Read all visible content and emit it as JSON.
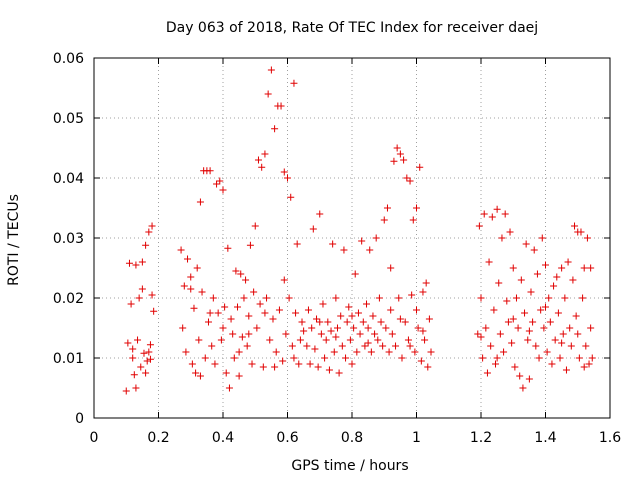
{
  "chart_data": {
    "type": "scatter",
    "title": "Day 063 of 2018, Rate Of TEC Index for receiver daej",
    "xlabel": "GPS time / hours",
    "ylabel": "ROTI / TECUs",
    "xlim": [
      0,
      1.6
    ],
    "ylim": [
      0,
      0.06
    ],
    "xticks": [
      "0",
      "0.2",
      "0.4",
      "0.6",
      "0.8",
      "1",
      "1.2",
      "1.4",
      "1.6"
    ],
    "yticks": [
      "0",
      "0.01",
      "0.02",
      "0.03",
      "0.04",
      "0.05",
      "0.06"
    ],
    "xtick_values": [
      0,
      0.2,
      0.4,
      0.6,
      0.8,
      1.0,
      1.2,
      1.4,
      1.6
    ],
    "ytick_values": [
      0,
      0.01,
      0.02,
      0.03,
      0.04,
      0.05,
      0.06
    ],
    "grid": true,
    "marker": "+",
    "color": "#e00000",
    "series": [
      {
        "name": "ROTI",
        "points": [
          [
            0.1,
            0.0045
          ],
          [
            0.105,
            0.0125
          ],
          [
            0.11,
            0.0258
          ],
          [
            0.115,
            0.019
          ],
          [
            0.12,
            0.01
          ],
          [
            0.125,
            0.0072
          ],
          [
            0.13,
            0.0255
          ],
          [
            0.135,
            0.013
          ],
          [
            0.14,
            0.02
          ],
          [
            0.145,
            0.0085
          ],
          [
            0.15,
            0.026
          ],
          [
            0.155,
            0.0108
          ],
          [
            0.16,
            0.0288
          ],
          [
            0.165,
            0.0095
          ],
          [
            0.17,
            0.031
          ],
          [
            0.175,
            0.0122
          ],
          [
            0.18,
            0.032
          ],
          [
            0.185,
            0.0178
          ],
          [
            0.13,
            0.005
          ],
          [
            0.15,
            0.0215
          ],
          [
            0.16,
            0.0075
          ],
          [
            0.175,
            0.0098
          ],
          [
            0.18,
            0.0205
          ],
          [
            0.12,
            0.0115
          ],
          [
            0.17,
            0.011
          ],
          [
            0.27,
            0.028
          ],
          [
            0.275,
            0.015
          ],
          [
            0.28,
            0.022
          ],
          [
            0.285,
            0.011
          ],
          [
            0.29,
            0.0265
          ],
          [
            0.3,
            0.0215
          ],
          [
            0.305,
            0.009
          ],
          [
            0.31,
            0.0183
          ],
          [
            0.315,
            0.0075
          ],
          [
            0.32,
            0.025
          ],
          [
            0.325,
            0.013
          ],
          [
            0.33,
            0.036
          ],
          [
            0.335,
            0.021
          ],
          [
            0.34,
            0.0412
          ],
          [
            0.345,
            0.01
          ],
          [
            0.35,
            0.0412
          ],
          [
            0.355,
            0.016
          ],
          [
            0.36,
            0.0412
          ],
          [
            0.365,
            0.012
          ],
          [
            0.37,
            0.02
          ],
          [
            0.375,
            0.009
          ],
          [
            0.38,
            0.039
          ],
          [
            0.385,
            0.0175
          ],
          [
            0.39,
            0.0395
          ],
          [
            0.395,
            0.013
          ],
          [
            0.4,
            0.038
          ],
          [
            0.405,
            0.0185
          ],
          [
            0.41,
            0.0075
          ],
          [
            0.415,
            0.0283
          ],
          [
            0.42,
            0.005
          ],
          [
            0.425,
            0.0165
          ],
          [
            0.43,
            0.014
          ],
          [
            0.435,
            0.01
          ],
          [
            0.44,
            0.0245
          ],
          [
            0.445,
            0.0185
          ],
          [
            0.45,
            0.007
          ],
          [
            0.455,
            0.024
          ],
          [
            0.46,
            0.0135
          ],
          [
            0.465,
            0.02
          ],
          [
            0.47,
            0.023
          ],
          [
            0.475,
            0.012
          ],
          [
            0.48,
            0.017
          ],
          [
            0.485,
            0.0288
          ],
          [
            0.49,
            0.009
          ],
          [
            0.495,
            0.021
          ],
          [
            0.3,
            0.0235
          ],
          [
            0.33,
            0.007
          ],
          [
            0.36,
            0.0175
          ],
          [
            0.4,
            0.015
          ],
          [
            0.45,
            0.011
          ],
          [
            0.48,
            0.014
          ],
          [
            0.5,
            0.032
          ],
          [
            0.505,
            0.015
          ],
          [
            0.51,
            0.043
          ],
          [
            0.515,
            0.019
          ],
          [
            0.52,
            0.0418
          ],
          [
            0.525,
            0.0085
          ],
          [
            0.53,
            0.044
          ],
          [
            0.535,
            0.02
          ],
          [
            0.54,
            0.054
          ],
          [
            0.545,
            0.013
          ],
          [
            0.55,
            0.058
          ],
          [
            0.555,
            0.0165
          ],
          [
            0.56,
            0.0482
          ],
          [
            0.565,
            0.011
          ],
          [
            0.57,
            0.052
          ],
          [
            0.575,
            0.018
          ],
          [
            0.58,
            0.052
          ],
          [
            0.585,
            0.0095
          ],
          [
            0.59,
            0.041
          ],
          [
            0.595,
            0.014
          ],
          [
            0.6,
            0.04
          ],
          [
            0.605,
            0.02
          ],
          [
            0.61,
            0.0368
          ],
          [
            0.615,
            0.012
          ],
          [
            0.62,
            0.0558
          ],
          [
            0.625,
            0.0175
          ],
          [
            0.63,
            0.029
          ],
          [
            0.635,
            0.009
          ],
          [
            0.64,
            0.013
          ],
          [
            0.645,
            0.016
          ],
          [
            0.53,
            0.0175
          ],
          [
            0.56,
            0.0085
          ],
          [
            0.59,
            0.023
          ],
          [
            0.62,
            0.01
          ],
          [
            0.65,
            0.0145
          ],
          [
            0.66,
            0.012
          ],
          [
            0.665,
            0.018
          ],
          [
            0.67,
            0.009
          ],
          [
            0.675,
            0.015
          ],
          [
            0.68,
            0.0315
          ],
          [
            0.685,
            0.0115
          ],
          [
            0.69,
            0.0165
          ],
          [
            0.695,
            0.0085
          ],
          [
            0.7,
            0.034
          ],
          [
            0.705,
            0.014
          ],
          [
            0.71,
            0.019
          ],
          [
            0.715,
            0.01
          ],
          [
            0.72,
            0.013
          ],
          [
            0.725,
            0.016
          ],
          [
            0.73,
            0.008
          ],
          [
            0.735,
            0.0145
          ],
          [
            0.74,
            0.029
          ],
          [
            0.745,
            0.011
          ],
          [
            0.75,
            0.02
          ],
          [
            0.755,
            0.015
          ],
          [
            0.76,
            0.0075
          ],
          [
            0.765,
            0.017
          ],
          [
            0.77,
            0.012
          ],
          [
            0.775,
            0.028
          ],
          [
            0.78,
            0.01
          ],
          [
            0.785,
            0.016
          ],
          [
            0.79,
            0.0185
          ],
          [
            0.795,
            0.013
          ],
          [
            0.8,
            0.009
          ],
          [
            0.805,
            0.015
          ],
          [
            0.81,
            0.024
          ],
          [
            0.815,
            0.011
          ],
          [
            0.82,
            0.0175
          ],
          [
            0.825,
            0.014
          ],
          [
            0.83,
            0.0295
          ],
          [
            0.835,
            0.016
          ],
          [
            0.84,
            0.012
          ],
          [
            0.845,
            0.019
          ],
          [
            0.85,
            0.015
          ],
          [
            0.855,
            0.028
          ],
          [
            0.86,
            0.011
          ],
          [
            0.865,
            0.017
          ],
          [
            0.87,
            0.014
          ],
          [
            0.875,
            0.03
          ],
          [
            0.88,
            0.013
          ],
          [
            0.885,
            0.02
          ],
          [
            0.89,
            0.016
          ],
          [
            0.895,
            0.012
          ],
          [
            0.7,
            0.016
          ],
          [
            0.75,
            0.0135
          ],
          [
            0.8,
            0.017
          ],
          [
            0.85,
            0.0125
          ],
          [
            0.9,
            0.033
          ],
          [
            0.905,
            0.015
          ],
          [
            0.91,
            0.035
          ],
          [
            0.915,
            0.011
          ],
          [
            0.92,
            0.018
          ],
          [
            0.925,
            0.014
          ],
          [
            0.93,
            0.0428
          ],
          [
            0.935,
            0.012
          ],
          [
            0.94,
            0.045
          ],
          [
            0.945,
            0.02
          ],
          [
            0.95,
            0.044
          ],
          [
            0.955,
            0.01
          ],
          [
            0.96,
            0.043
          ],
          [
            0.965,
            0.016
          ],
          [
            0.97,
            0.04
          ],
          [
            0.975,
            0.013
          ],
          [
            0.98,
            0.0395
          ],
          [
            0.985,
            0.0205
          ],
          [
            0.99,
            0.033
          ],
          [
            0.995,
            0.011
          ],
          [
            1.0,
            0.035
          ],
          [
            1.005,
            0.015
          ],
          [
            1.01,
            0.0418
          ],
          [
            1.015,
            0.0095
          ],
          [
            1.02,
            0.021
          ],
          [
            1.025,
            0.013
          ],
          [
            1.03,
            0.0225
          ],
          [
            1.035,
            0.0085
          ],
          [
            1.04,
            0.0165
          ],
          [
            1.045,
            0.011
          ],
          [
            0.92,
            0.025
          ],
          [
            0.95,
            0.0165
          ],
          [
            0.98,
            0.012
          ],
          [
            1.0,
            0.018
          ],
          [
            1.02,
            0.0145
          ],
          [
            1.19,
            0.014
          ],
          [
            1.195,
            0.032
          ],
          [
            1.2,
            0.02
          ],
          [
            1.205,
            0.01
          ],
          [
            1.21,
            0.034
          ],
          [
            1.215,
            0.015
          ],
          [
            1.22,
            0.0075
          ],
          [
            1.225,
            0.026
          ],
          [
            1.23,
            0.012
          ],
          [
            1.235,
            0.0335
          ],
          [
            1.24,
            0.018
          ],
          [
            1.245,
            0.009
          ],
          [
            1.25,
            0.0348
          ],
          [
            1.255,
            0.0225
          ],
          [
            1.26,
            0.014
          ],
          [
            1.265,
            0.03
          ],
          [
            1.27,
            0.011
          ],
          [
            1.275,
            0.034
          ],
          [
            1.28,
            0.0195
          ],
          [
            1.285,
            0.016
          ],
          [
            1.29,
            0.031
          ],
          [
            1.295,
            0.0125
          ],
          [
            1.3,
            0.025
          ],
          [
            1.305,
            0.0085
          ],
          [
            1.31,
            0.02
          ],
          [
            1.315,
            0.015
          ],
          [
            1.32,
            0.007
          ],
          [
            1.325,
            0.023
          ],
          [
            1.33,
            0.005
          ],
          [
            1.335,
            0.0175
          ],
          [
            1.34,
            0.029
          ],
          [
            1.345,
            0.013
          ],
          [
            1.35,
            0.0065
          ],
          [
            1.355,
            0.021
          ],
          [
            1.36,
            0.016
          ],
          [
            1.365,
            0.028
          ],
          [
            1.37,
            0.012
          ],
          [
            1.375,
            0.024
          ],
          [
            1.38,
            0.01
          ],
          [
            1.385,
            0.018
          ],
          [
            1.2,
            0.0135
          ],
          [
            1.25,
            0.01
          ],
          [
            1.3,
            0.0165
          ],
          [
            1.35,
            0.0145
          ],
          [
            1.39,
            0.03
          ],
          [
            1.395,
            0.015
          ],
          [
            1.4,
            0.0255
          ],
          [
            1.405,
            0.011
          ],
          [
            1.41,
            0.02
          ],
          [
            1.415,
            0.016
          ],
          [
            1.42,
            0.009
          ],
          [
            1.425,
            0.022
          ],
          [
            1.43,
            0.013
          ],
          [
            1.435,
            0.0235
          ],
          [
            1.44,
            0.0175
          ],
          [
            1.445,
            0.01
          ],
          [
            1.45,
            0.025
          ],
          [
            1.455,
            0.014
          ],
          [
            1.46,
            0.02
          ],
          [
            1.465,
            0.008
          ],
          [
            1.47,
            0.026
          ],
          [
            1.475,
            0.015
          ],
          [
            1.48,
            0.012
          ],
          [
            1.485,
            0.023
          ],
          [
            1.49,
            0.032
          ],
          [
            1.495,
            0.017
          ],
          [
            1.5,
            0.031
          ],
          [
            1.505,
            0.01
          ],
          [
            1.51,
            0.031
          ],
          [
            1.515,
            0.02
          ],
          [
            1.52,
            0.025
          ],
          [
            1.525,
            0.012
          ],
          [
            1.53,
            0.03
          ],
          [
            1.535,
            0.009
          ],
          [
            1.54,
            0.015
          ],
          [
            1.545,
            0.01
          ],
          [
            1.4,
            0.0185
          ],
          [
            1.45,
            0.0125
          ],
          [
            1.5,
            0.014
          ],
          [
            1.52,
            0.0085
          ],
          [
            1.54,
            0.025
          ]
        ]
      }
    ]
  }
}
